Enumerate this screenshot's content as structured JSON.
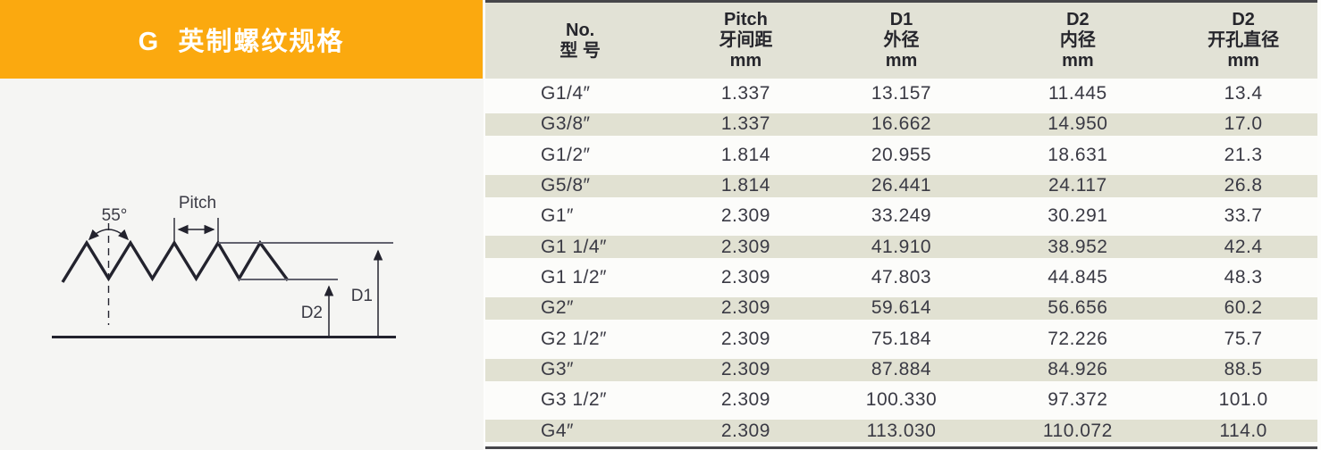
{
  "banner": {
    "title": "G  英制螺纹规格"
  },
  "diagram": {
    "angle_label": "55°",
    "pitch_label": "Pitch",
    "d1_label": "D1",
    "d2_label": "D2"
  },
  "table": {
    "headers": [
      {
        "lines": [
          "No.",
          "型 号"
        ]
      },
      {
        "lines": [
          "Pitch",
          "牙间距",
          "mm"
        ]
      },
      {
        "lines": [
          "D1",
          "外径",
          "mm"
        ]
      },
      {
        "lines": [
          "D2",
          "内径",
          "mm"
        ]
      },
      {
        "lines": [
          "D2",
          "开孔直径",
          "mm"
        ]
      }
    ],
    "rows": [
      {
        "no": "G1/4″",
        "pitch": "1.337",
        "d1": "13.157",
        "d2": "11.445",
        "hole": "13.4"
      },
      {
        "no": "G3/8″",
        "pitch": "1.337",
        "d1": "16.662",
        "d2": "14.950",
        "hole": "17.0"
      },
      {
        "no": "G1/2″",
        "pitch": "1.814",
        "d1": "20.955",
        "d2": "18.631",
        "hole": "21.3"
      },
      {
        "no": "G5/8″",
        "pitch": "1.814",
        "d1": "26.441",
        "d2": "24.117",
        "hole": "26.8"
      },
      {
        "no": "G1″",
        "pitch": "2.309",
        "d1": "33.249",
        "d2": "30.291",
        "hole": "33.7"
      },
      {
        "no": "G1 1/4″",
        "pitch": "2.309",
        "d1": "41.910",
        "d2": "38.952",
        "hole": "42.4"
      },
      {
        "no": "G1 1/2″",
        "pitch": "2.309",
        "d1": "47.803",
        "d2": "44.845",
        "hole": "48.3"
      },
      {
        "no": "G2″",
        "pitch": "2.309",
        "d1": "59.614",
        "d2": "56.656",
        "hole": "60.2"
      },
      {
        "no": "G2 1/2″",
        "pitch": "2.309",
        "d1": "75.184",
        "d2": "72.226",
        "hole": "75.7"
      },
      {
        "no": "G3″",
        "pitch": "2.309",
        "d1": "87.884",
        "d2": "84.926",
        "hole": "88.5"
      },
      {
        "no": "G3 1/2″",
        "pitch": "2.309",
        "d1": "100.330",
        "d2": "97.372",
        "hole": "101.0"
      },
      {
        "no": "G4″",
        "pitch": "2.309",
        "d1": "113.030",
        "d2": "110.072",
        "hole": "114.0"
      }
    ]
  },
  "colors": {
    "banner-bg": "#FBA90F",
    "banner-fg": "#FFFFFF",
    "header-bg": "#E2E2D6",
    "stripe": "#E1E1D2",
    "rule": "#46464A",
    "ink": "#3A3A44",
    "head-ink": "#26262C",
    "line": "#23232E",
    "dim-line": "#62626E"
  }
}
